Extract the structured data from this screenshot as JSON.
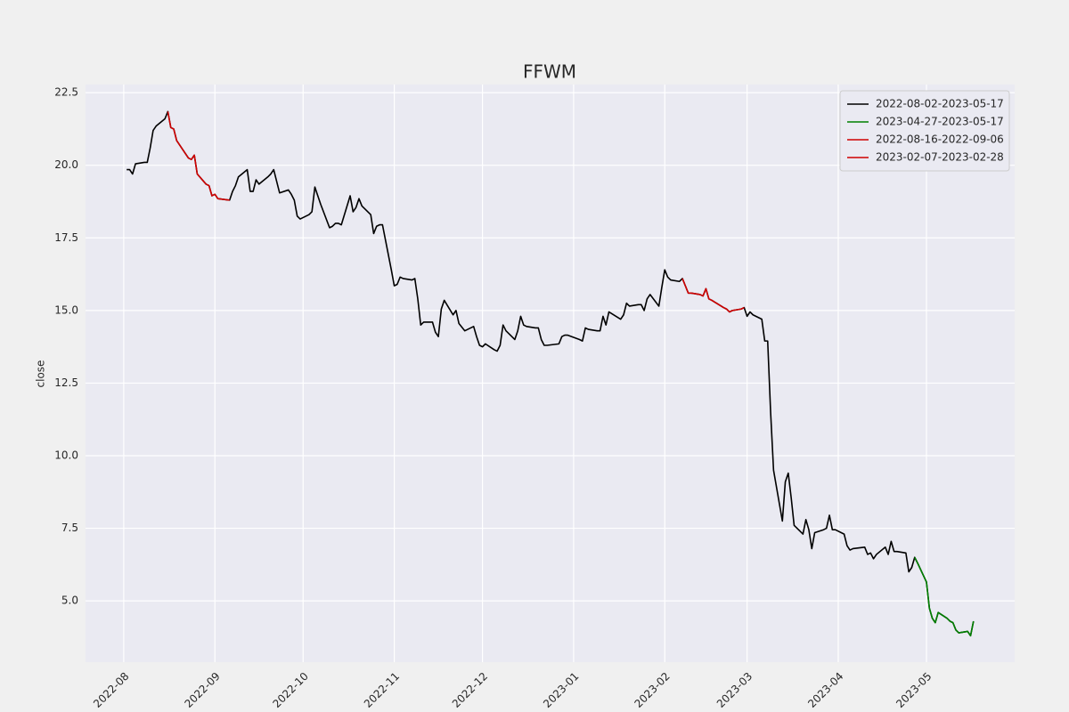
{
  "chart_data": {
    "type": "line",
    "title": "FFWM",
    "y_label": "close",
    "xlim": [
      "2022-07-19",
      "2023-05-31"
    ],
    "ylim": [
      2.89,
      22.78
    ],
    "xticks": [
      {
        "value": "2022-08-01",
        "label": "2022-08"
      },
      {
        "value": "2022-09-01",
        "label": "2022-09"
      },
      {
        "value": "2022-10-01",
        "label": "2022-10"
      },
      {
        "value": "2022-11-01",
        "label": "2022-11"
      },
      {
        "value": "2022-12-01",
        "label": "2022-12"
      },
      {
        "value": "2023-01-01",
        "label": "2023-01"
      },
      {
        "value": "2023-02-01",
        "label": "2023-02"
      },
      {
        "value": "2023-03-01",
        "label": "2023-03"
      },
      {
        "value": "2023-04-01",
        "label": "2023-04"
      },
      {
        "value": "2023-05-01",
        "label": "2023-05"
      }
    ],
    "yticks": [
      {
        "value": 5,
        "label": "5.0"
      },
      7.5,
      {
        "value": 10,
        "label": "10.0"
      },
      12.5,
      {
        "value": 15,
        "label": "15.0"
      },
      17.5,
      {
        "value": 20,
        "label": "20.0"
      },
      22.5
    ],
    "grid": true,
    "legend": "upper right",
    "series": [
      {
        "name": "2022-08-02-2023-05-17",
        "color": "#000000",
        "x": [
          "2022-08-02",
          "2022-08-03",
          "2022-08-04",
          "2022-08-05",
          "2022-08-08",
          "2022-08-09",
          "2022-08-10",
          "2022-08-11",
          "2022-08-12",
          "2022-08-15",
          "2022-08-16",
          "2022-08-17",
          "2022-08-18",
          "2022-08-19",
          "2022-08-22",
          "2022-08-23",
          "2022-08-24",
          "2022-08-25",
          "2022-08-26",
          "2022-08-29",
          "2022-08-30",
          "2022-08-31",
          "2022-09-01",
          "2022-09-02",
          "2022-09-06",
          "2022-09-07",
          "2022-09-08",
          "2022-09-09",
          "2022-09-12",
          "2022-09-13",
          "2022-09-14",
          "2022-09-15",
          "2022-09-16",
          "2022-09-19",
          "2022-09-20",
          "2022-09-21",
          "2022-09-22",
          "2022-09-23",
          "2022-09-26",
          "2022-09-27",
          "2022-09-28",
          "2022-09-29",
          "2022-09-30",
          "2022-10-03",
          "2022-10-04",
          "2022-10-05",
          "2022-10-06",
          "2022-10-07",
          "2022-10-10",
          "2022-10-11",
          "2022-10-12",
          "2022-10-13",
          "2022-10-14",
          "2022-10-17",
          "2022-10-18",
          "2022-10-19",
          "2022-10-20",
          "2022-10-21",
          "2022-10-24",
          "2022-10-25",
          "2022-10-26",
          "2022-10-27",
          "2022-10-28",
          "2022-10-31",
          "2022-11-01",
          "2022-11-02",
          "2022-11-03",
          "2022-11-04",
          "2022-11-07",
          "2022-11-08",
          "2022-11-09",
          "2022-11-10",
          "2022-11-11",
          "2022-11-14",
          "2022-11-15",
          "2022-11-16",
          "2022-11-17",
          "2022-11-18",
          "2022-11-21",
          "2022-11-22",
          "2022-11-23",
          "2022-11-25",
          "2022-11-28",
          "2022-11-29",
          "2022-11-30",
          "2022-12-01",
          "2022-12-02",
          "2022-12-05",
          "2022-12-06",
          "2022-12-07",
          "2022-12-08",
          "2022-12-09",
          "2022-12-12",
          "2022-12-13",
          "2022-12-14",
          "2022-12-15",
          "2022-12-16",
          "2022-12-19",
          "2022-12-20",
          "2022-12-21",
          "2022-12-22",
          "2022-12-23",
          "2022-12-27",
          "2022-12-28",
          "2022-12-29",
          "2022-12-30",
          "2023-01-03",
          "2023-01-04",
          "2023-01-05",
          "2023-01-06",
          "2023-01-09",
          "2023-01-10",
          "2023-01-11",
          "2023-01-12",
          "2023-01-13",
          "2023-01-17",
          "2023-01-18",
          "2023-01-19",
          "2023-01-20",
          "2023-01-23",
          "2023-01-24",
          "2023-01-25",
          "2023-01-26",
          "2023-01-27",
          "2023-01-30",
          "2023-01-31",
          "2023-02-01",
          "2023-02-02",
          "2023-02-03",
          "2023-02-06",
          "2023-02-07",
          "2023-02-08",
          "2023-02-09",
          "2023-02-10",
          "2023-02-13",
          "2023-02-14",
          "2023-02-15",
          "2023-02-16",
          "2023-02-17",
          "2023-02-21",
          "2023-02-22",
          "2023-02-23",
          "2023-02-24",
          "2023-02-27",
          "2023-02-28",
          "2023-03-01",
          "2023-03-02",
          "2023-03-03",
          "2023-03-06",
          "2023-03-07",
          "2023-03-08",
          "2023-03-09",
          "2023-03-10",
          "2023-03-13",
          "2023-03-14",
          "2023-03-15",
          "2023-03-16",
          "2023-03-17",
          "2023-03-20",
          "2023-03-21",
          "2023-03-22",
          "2023-03-23",
          "2023-03-24",
          "2023-03-27",
          "2023-03-28",
          "2023-03-29",
          "2023-03-30",
          "2023-03-31",
          "2023-04-03",
          "2023-04-04",
          "2023-04-05",
          "2023-04-06",
          "2023-04-10",
          "2023-04-11",
          "2023-04-12",
          "2023-04-13",
          "2023-04-14",
          "2023-04-17",
          "2023-04-18",
          "2023-04-19",
          "2023-04-20",
          "2023-04-21",
          "2023-04-24",
          "2023-04-25",
          "2023-04-26",
          "2023-04-27",
          "2023-04-28",
          "2023-05-01",
          "2023-05-02",
          "2023-05-03",
          "2023-05-04",
          "2023-05-05",
          "2023-05-08",
          "2023-05-09",
          "2023-05-10",
          "2023-05-11",
          "2023-05-12",
          "2023-05-15",
          "2023-05-16",
          "2023-05-17"
        ],
        "values": [
          19.85,
          19.85,
          19.7,
          20.05,
          20.1,
          20.1,
          20.6,
          21.2,
          21.35,
          21.6,
          21.85,
          21.3,
          21.25,
          20.85,
          20.4,
          20.25,
          20.2,
          20.35,
          19.7,
          19.35,
          19.3,
          18.95,
          19.0,
          18.85,
          18.8,
          19.1,
          19.3,
          19.6,
          19.85,
          19.1,
          19.1,
          19.5,
          19.35,
          19.6,
          19.7,
          19.85,
          19.45,
          19.05,
          19.15,
          19.0,
          18.8,
          18.25,
          18.15,
          18.3,
          18.4,
          19.25,
          18.95,
          18.65,
          17.85,
          17.9,
          18.0,
          18.0,
          17.95,
          18.95,
          18.4,
          18.55,
          18.85,
          18.6,
          18.3,
          17.65,
          17.9,
          17.95,
          17.95,
          16.4,
          15.85,
          15.9,
          16.15,
          16.1,
          16.05,
          16.1,
          15.4,
          14.5,
          14.6,
          14.6,
          14.25,
          14.1,
          15.05,
          15.35,
          14.85,
          15.0,
          14.55,
          14.3,
          14.45,
          14.1,
          13.8,
          13.75,
          13.85,
          13.65,
          13.6,
          13.8,
          14.5,
          14.3,
          14.0,
          14.3,
          14.8,
          14.5,
          14.45,
          14.4,
          14.4,
          14.0,
          13.8,
          13.8,
          13.85,
          14.1,
          14.15,
          14.15,
          14.0,
          13.95,
          14.4,
          14.35,
          14.3,
          14.3,
          14.8,
          14.5,
          14.95,
          14.7,
          14.85,
          15.25,
          15.15,
          15.2,
          15.2,
          15.0,
          15.4,
          15.55,
          15.15,
          15.8,
          16.4,
          16.15,
          16.05,
          16.0,
          16.1,
          15.85,
          15.6,
          15.6,
          15.55,
          15.5,
          15.75,
          15.4,
          15.35,
          15.1,
          15.05,
          14.95,
          15.0,
          15.05,
          15.1,
          14.8,
          14.95,
          14.85,
          14.7,
          13.95,
          13.95,
          11.5,
          9.5,
          7.75,
          9.1,
          9.4,
          8.55,
          7.6,
          7.3,
          7.8,
          7.45,
          6.8,
          7.35,
          7.45,
          7.5,
          7.95,
          7.45,
          7.45,
          7.3,
          6.9,
          6.75,
          6.8,
          6.85,
          6.6,
          6.65,
          6.45,
          6.6,
          6.85,
          6.6,
          7.05,
          6.7,
          6.7,
          6.65,
          6.0,
          6.15,
          6.5,
          6.3,
          5.65,
          4.75,
          4.4,
          4.25,
          4.6,
          4.4,
          4.3,
          4.25,
          4.0,
          3.9,
          3.95,
          3.8,
          4.3
        ]
      },
      {
        "name": "2023-04-27-2023-05-17",
        "color": "#008000",
        "x": [
          "2023-04-27",
          "2023-04-28",
          "2023-05-01",
          "2023-05-02",
          "2023-05-03",
          "2023-05-04",
          "2023-05-05",
          "2023-05-08",
          "2023-05-09",
          "2023-05-10",
          "2023-05-11",
          "2023-05-12",
          "2023-05-15",
          "2023-05-16",
          "2023-05-17"
        ],
        "values": [
          6.5,
          6.3,
          5.65,
          4.75,
          4.4,
          4.25,
          4.6,
          4.4,
          4.3,
          4.25,
          4.0,
          3.9,
          3.95,
          3.8,
          4.3
        ]
      },
      {
        "name": "2022-08-16-2022-09-06",
        "color": "#d00000",
        "x": [
          "2022-08-16",
          "2022-08-17",
          "2022-08-18",
          "2022-08-19",
          "2022-08-22",
          "2022-08-23",
          "2022-08-24",
          "2022-08-25",
          "2022-08-26",
          "2022-08-29",
          "2022-08-30",
          "2022-08-31",
          "2022-09-01",
          "2022-09-02",
          "2022-09-06"
        ],
        "values": [
          21.85,
          21.3,
          21.25,
          20.85,
          20.4,
          20.25,
          20.2,
          20.35,
          19.7,
          19.35,
          19.3,
          18.95,
          19.0,
          18.85,
          18.8
        ]
      },
      {
        "name": "2023-02-07-2023-02-28",
        "color": "#d00000",
        "x": [
          "2023-02-07",
          "2023-02-08",
          "2023-02-09",
          "2023-02-10",
          "2023-02-13",
          "2023-02-14",
          "2023-02-15",
          "2023-02-16",
          "2023-02-17",
          "2023-02-21",
          "2023-02-22",
          "2023-02-23",
          "2023-02-24",
          "2023-02-27",
          "2023-02-28"
        ],
        "values": [
          16.1,
          15.85,
          15.6,
          15.6,
          15.55,
          15.5,
          15.75,
          15.4,
          15.35,
          15.1,
          15.05,
          14.95,
          15.0,
          15.05,
          15.1
        ]
      }
    ]
  }
}
